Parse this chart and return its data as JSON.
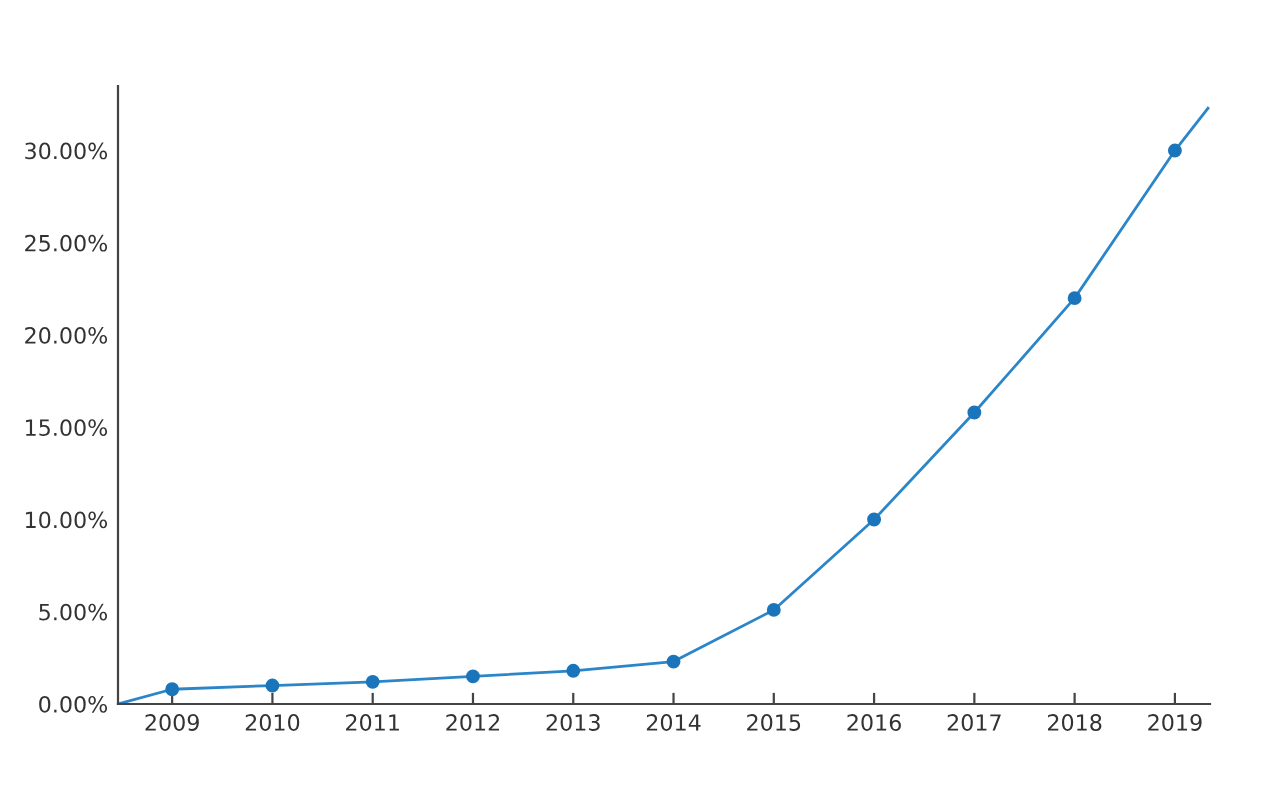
{
  "chart_data": {
    "type": "line",
    "series": [
      {
        "color": "#2a86c8",
        "marker": "none",
        "x": [
          2008.46,
          2009,
          2010,
          2011,
          2012,
          2013,
          2014,
          2015,
          2016,
          2017,
          2018,
          2019,
          2019.33
        ],
        "values": [
          0,
          0.8,
          1.0,
          1.2,
          1.5,
          1.8,
          2.3,
          5.1,
          10.0,
          15.8,
          22.0,
          30.0,
          32.3
        ]
      },
      {
        "type": "scatter",
        "color": "#1a75bb",
        "marker": "circle",
        "x": [
          2009,
          2010,
          2011,
          2012,
          2013,
          2014,
          2015,
          2016,
          2017,
          2018,
          2019
        ],
        "values": [
          0.8,
          1.0,
          1.2,
          1.5,
          1.8,
          2.3,
          5.1,
          10.0,
          15.8,
          22.0,
          30.0
        ]
      }
    ],
    "xlim": [
      2008.46,
      2019.35
    ],
    "xticks": [
      2009,
      2010,
      2011,
      2012,
      2013,
      2014,
      2015,
      2016,
      2017,
      2018,
      2019
    ],
    "ylim": [
      0,
      33.5
    ],
    "yticks": [
      {
        "value": 0,
        "label": "0.00%"
      },
      {
        "value": 5,
        "label": "5.00%"
      },
      {
        "value": 10,
        "label": "10.00%"
      },
      {
        "value": 15,
        "label": "15.00%"
      },
      {
        "value": 20,
        "label": "20.00%"
      },
      {
        "value": 25,
        "label": "25.00%"
      },
      {
        "value": 30,
        "label": "30.00%"
      }
    ],
    "grid": false,
    "legend": false
  }
}
